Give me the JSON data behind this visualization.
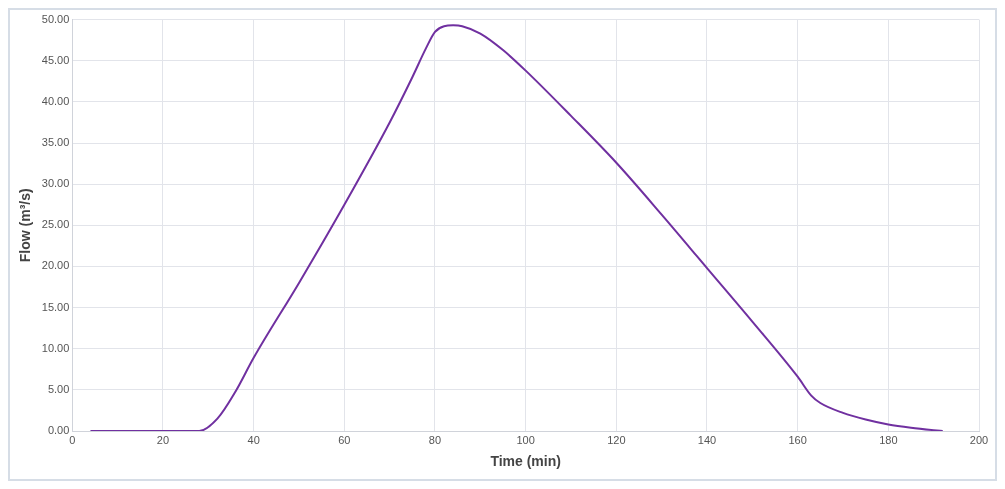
{
  "chart_data": {
    "type": "line",
    "xlabel": "Time (min)",
    "ylabel": "Flow (m³/s)",
    "series": [
      {
        "color": "#7030a0",
        "x": [
          4,
          10,
          20,
          25,
          28,
          32,
          36,
          40,
          50,
          60,
          70,
          75,
          78,
          80,
          82,
          84,
          86,
          90,
          95,
          100,
          110,
          120,
          130,
          140,
          150,
          160,
          163,
          165,
          170,
          175,
          180,
          185,
          190,
          192
        ],
        "values": [
          0,
          0,
          0,
          0,
          0,
          1.5,
          4.8,
          8.9,
          18,
          27.5,
          37.5,
          43,
          46.5,
          48.5,
          49.2,
          49.3,
          49.2,
          48.3,
          46.3,
          43.8,
          38.3,
          32.6,
          26.3,
          19.8,
          13.3,
          6.6,
          4.3,
          3.4,
          2.2,
          1.4,
          0.8,
          0.4,
          0.1,
          0
        ]
      }
    ],
    "xlim": [
      0,
      200
    ],
    "xticks": [
      0,
      20,
      40,
      60,
      80,
      100,
      120,
      140,
      160,
      180,
      200
    ],
    "ylim": [
      0,
      50
    ],
    "yticks": [
      {
        "value": 0,
        "label": "0.00"
      },
      {
        "value": 5,
        "label": "5.00"
      },
      {
        "value": 10,
        "label": "10.00"
      },
      {
        "value": 15,
        "label": "15.00"
      },
      {
        "value": 20,
        "label": "20.00"
      },
      {
        "value": 25,
        "label": "25.00"
      },
      {
        "value": 30,
        "label": "30.00"
      },
      {
        "value": 35,
        "label": "35.00"
      },
      {
        "value": 40,
        "label": "40.00"
      },
      {
        "value": 45,
        "label": "45.00"
      },
      {
        "value": 50,
        "label": "50.00"
      }
    ],
    "grid": true,
    "legend": false,
    "marker": "none",
    "line_style": "solid"
  }
}
